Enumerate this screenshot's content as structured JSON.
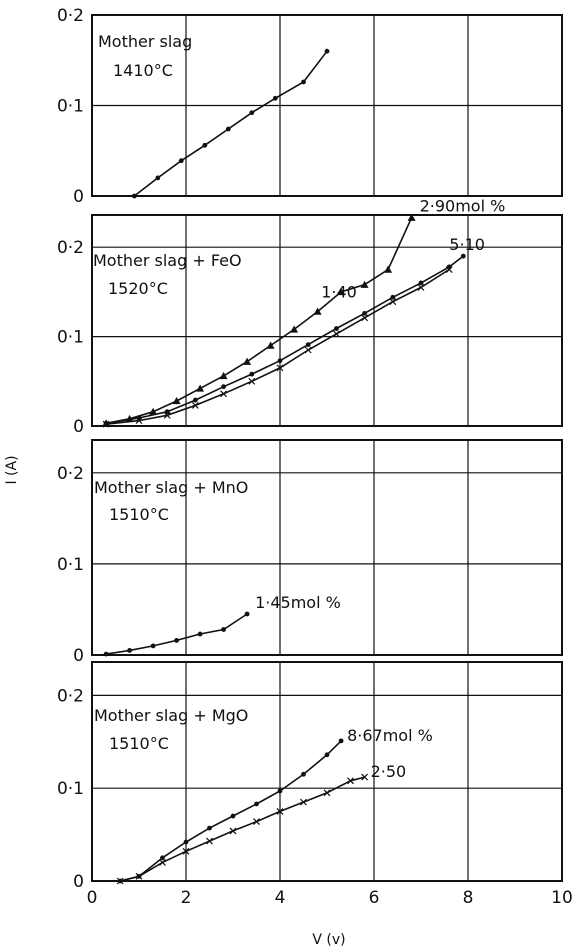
{
  "figure": {
    "ylabel": "I (A)",
    "xlabel": "V (v)"
  },
  "chart_data": [
    {
      "type": "line",
      "title_lines": [
        "Mother slag",
        "1410°C"
      ],
      "xlim": [
        0,
        10
      ],
      "ylim": [
        0,
        0.2
      ],
      "x_ticks": [
        "0",
        "2",
        "4",
        "6",
        "8",
        "10"
      ],
      "y_ticks": [
        "0",
        "0·1",
        "0·2"
      ],
      "grid": true,
      "series": [
        {
          "label": "",
          "marker": "dot",
          "x": [
            0.9,
            1.4,
            1.9,
            2.4,
            2.9,
            3.4,
            3.9,
            4.5,
            5.0
          ],
          "y": [
            0.0,
            0.02,
            0.039,
            0.056,
            0.074,
            0.092,
            0.108,
            0.126,
            0.16
          ]
        }
      ]
    },
    {
      "type": "line",
      "title_lines": [
        "Mother slag + FeO",
        "1520°C"
      ],
      "xlim": [
        0,
        10
      ],
      "ylim": [
        0,
        0.2
      ],
      "y_ticks": [
        "0",
        "0·1",
        "0·2"
      ],
      "grid": true,
      "series": [
        {
          "label": "2·90mol %",
          "marker": "triangle",
          "x": [
            0.3,
            0.8,
            1.3,
            1.8,
            2.3,
            2.8,
            3.3,
            3.8,
            4.3,
            4.8,
            5.3,
            5.8,
            6.3,
            6.8
          ],
          "y": [
            0.003,
            0.008,
            0.016,
            0.028,
            0.042,
            0.056,
            0.072,
            0.09,
            0.108,
            0.128,
            0.15,
            0.158,
            0.175,
            0.233
          ]
        },
        {
          "label": "5·10",
          "marker": "dot",
          "x": [
            0.3,
            1.0,
            1.6,
            2.2,
            2.8,
            3.4,
            4.0,
            4.6,
            5.2,
            5.8,
            6.4,
            7.0,
            7.6,
            7.9
          ],
          "y": [
            0.003,
            0.009,
            0.016,
            0.029,
            0.044,
            0.058,
            0.073,
            0.091,
            0.109,
            0.126,
            0.144,
            0.16,
            0.178,
            0.19
          ]
        },
        {
          "label": "1·40",
          "marker": "cross",
          "x": [
            0.3,
            1.0,
            1.6,
            2.2,
            2.8,
            3.4,
            4.0,
            4.6,
            5.2,
            5.8,
            6.4,
            7.0,
            7.6
          ],
          "y": [
            0.002,
            0.006,
            0.012,
            0.023,
            0.036,
            0.05,
            0.065,
            0.085,
            0.103,
            0.121,
            0.139,
            0.155,
            0.175
          ]
        }
      ]
    },
    {
      "type": "line",
      "title_lines": [
        "Mother slag + MnO",
        "1510°C"
      ],
      "xlim": [
        0,
        10
      ],
      "ylim": [
        0,
        0.2
      ],
      "y_ticks": [
        "0",
        "0·1",
        "0·2"
      ],
      "grid": true,
      "series": [
        {
          "label": "1·45mol %",
          "marker": "dot",
          "x": [
            0.3,
            0.8,
            1.3,
            1.8,
            2.3,
            2.8,
            3.3
          ],
          "y": [
            0.001,
            0.005,
            0.01,
            0.016,
            0.023,
            0.028,
            0.045
          ]
        }
      ]
    },
    {
      "type": "line",
      "title_lines": [
        "Mother slag + MgO",
        "1510°C"
      ],
      "xlim": [
        0,
        10
      ],
      "ylim": [
        0,
        0.2
      ],
      "x_ticks": [
        "0",
        "2",
        "4",
        "6",
        "8",
        "10"
      ],
      "y_ticks": [
        "0",
        "0·1",
        "0·2"
      ],
      "grid": true,
      "series": [
        {
          "label": "8·67mol %",
          "marker": "dot",
          "x": [
            0.6,
            1.0,
            1.5,
            2.0,
            2.5,
            3.0,
            3.5,
            4.0,
            4.5,
            5.0,
            5.3
          ],
          "y": [
            0.0,
            0.005,
            0.025,
            0.042,
            0.057,
            0.07,
            0.083,
            0.097,
            0.115,
            0.136,
            0.151
          ]
        },
        {
          "label": "2·50",
          "marker": "cross",
          "x": [
            0.6,
            1.0,
            1.5,
            2.0,
            2.5,
            3.0,
            3.5,
            4.0,
            4.5,
            5.0,
            5.5,
            5.8
          ],
          "y": [
            0.0,
            0.005,
            0.02,
            0.032,
            0.043,
            0.054,
            0.064,
            0.075,
            0.085,
            0.095,
            0.108,
            0.112
          ]
        }
      ]
    }
  ]
}
